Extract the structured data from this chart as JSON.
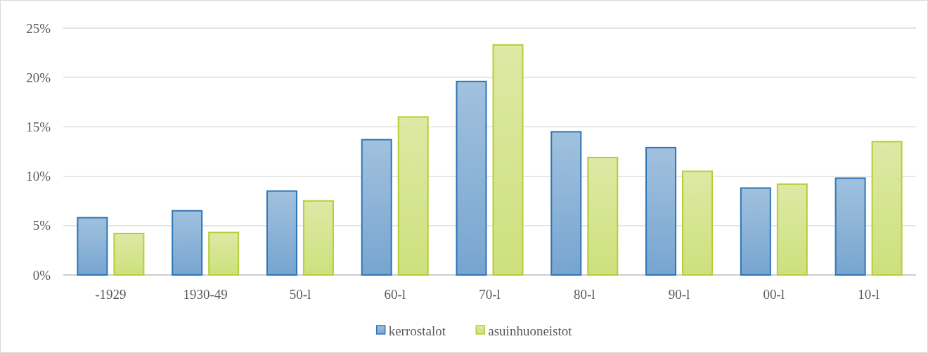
{
  "chart_data": {
    "type": "bar",
    "categories": [
      "-1929",
      "1930-49",
      "50-l",
      "60-l",
      "70-l",
      "80-l",
      "90-l",
      "00-l",
      "10-l"
    ],
    "series": [
      {
        "name": "kerrostalot",
        "color": "#2e75b6",
        "values": [
          5.8,
          6.5,
          8.5,
          13.7,
          19.6,
          14.5,
          12.9,
          8.8,
          9.8
        ]
      },
      {
        "name": "asuinhuoneistot",
        "color": "#b4cf36",
        "values": [
          4.2,
          4.3,
          7.5,
          16.0,
          23.3,
          11.9,
          10.5,
          9.2,
          13.5
        ]
      }
    ],
    "ylim": [
      0,
      25
    ],
    "yticks": [
      {
        "value": 0,
        "label": "0%"
      },
      {
        "value": 5,
        "label": "5%"
      },
      {
        "value": 10,
        "label": "10%"
      },
      {
        "value": 15,
        "label": "15%"
      },
      {
        "value": 20,
        "label": "20%"
      },
      {
        "value": 25,
        "label": "25%"
      }
    ],
    "grid": "y",
    "legend": "bottom"
  }
}
